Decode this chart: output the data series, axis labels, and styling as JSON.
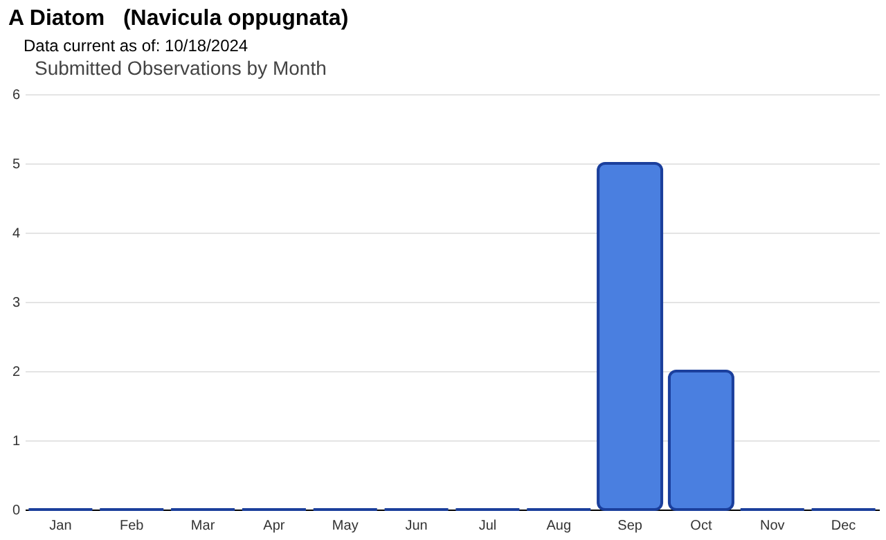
{
  "chart_data": {
    "type": "bar",
    "title": "A Diatom   (Navicula oppugnata)",
    "subtitle": "Data current as of: 10/18/2024",
    "annotations": [
      "Submitted Observations by Month"
    ],
    "categories": [
      "Jan",
      "Feb",
      "Mar",
      "Apr",
      "May",
      "Jun",
      "Jul",
      "Aug",
      "Sep",
      "Oct",
      "Nov",
      "Dec"
    ],
    "values": [
      0,
      0,
      0,
      0,
      0,
      0,
      0,
      0,
      5,
      2,
      0,
      0
    ],
    "color": "#4a7fe0",
    "ylim": [
      0,
      6
    ],
    "yticks": [
      0,
      1,
      2,
      3,
      4,
      5,
      6
    ],
    "grid": "y"
  }
}
